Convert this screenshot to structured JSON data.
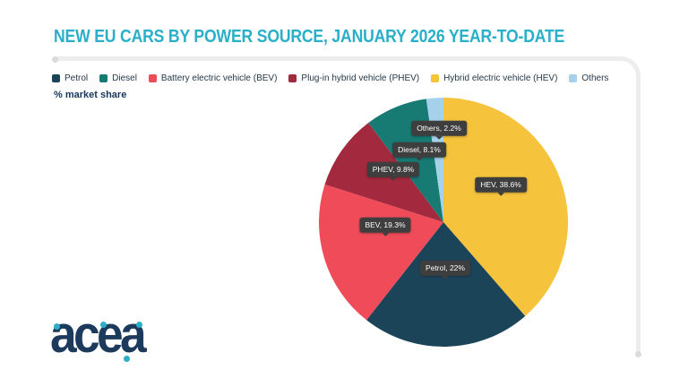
{
  "chart_data": {
    "type": "pie",
    "title": "NEW EU CARS BY POWER SOURCE, JANUARY 2026 YEAR-TO-DATE",
    "unit_label": "% market share",
    "legend_position": "top",
    "direction": "clockwise",
    "start_angle_deg": 0,
    "legend": [
      {
        "label": "Petrol",
        "color": "#1C4459"
      },
      {
        "label": "Diesel",
        "color": "#177B74"
      },
      {
        "label": "Battery electric vehicle (BEV)",
        "color": "#EF4B59"
      },
      {
        "label": "Plug-in hybrid vehicle (PHEV)",
        "color": "#A32A3E"
      },
      {
        "label": "Hybrid electric vehicle (HEV)",
        "color": "#F5C33C"
      },
      {
        "label": "Others",
        "color": "#A6D0EC"
      }
    ],
    "slices": [
      {
        "key": "hev",
        "name": "HEV",
        "value": 38.6,
        "color": "#F5C33C",
        "callout": "HEV, 38.6%"
      },
      {
        "key": "petrol",
        "name": "Petrol",
        "value": 22,
        "color": "#1C4459",
        "callout": "Petrol, 22%"
      },
      {
        "key": "bev",
        "name": "BEV",
        "value": 19.3,
        "color": "#EF4B59",
        "callout": "BEV, 19.3%"
      },
      {
        "key": "phev",
        "name": "PHEV",
        "value": 9.8,
        "color": "#A32A3E",
        "callout": "PHEV, 9.8%"
      },
      {
        "key": "diesel",
        "name": "Diesel",
        "value": 8.1,
        "color": "#177B74",
        "callout": "Diesel, 8.1%"
      },
      {
        "key": "others",
        "name": "Others",
        "value": 2.2,
        "color": "#A6D0EC",
        "callout": "Others, 2.2%"
      }
    ]
  },
  "colors": {
    "title": "#29AFC8",
    "text_navy": "#16365C",
    "tooltip_bg": "#3E3E3E",
    "divider": "#EDEDED"
  },
  "logo": {
    "text": "acea",
    "color": "#1B3A5C",
    "accent_color": "#2BAEC6"
  }
}
